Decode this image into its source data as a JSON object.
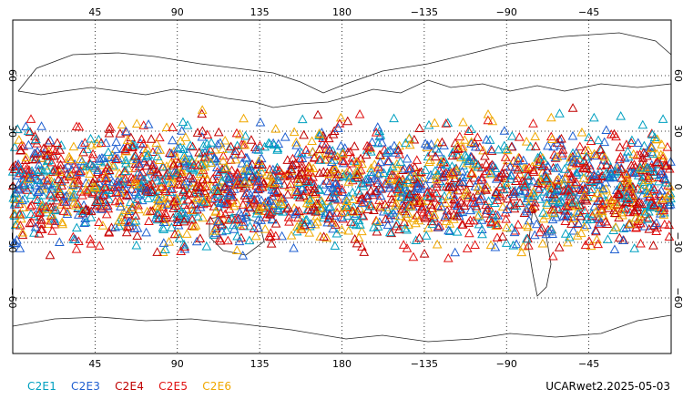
{
  "chart_data": {
    "type": "scatter",
    "projection": "cylindrical-equidistant",
    "center_longitude": 180,
    "marker": "open-triangle",
    "xlim": [
      0,
      360
    ],
    "ylim": [
      -90,
      90
    ],
    "grid": true,
    "lon_ticks": [
      {
        "value": 45,
        "label": "45"
      },
      {
        "value": 90,
        "label": "90"
      },
      {
        "value": 135,
        "label": "135"
      },
      {
        "value": 180,
        "label": "180"
      },
      {
        "value": 225,
        "label": "−135"
      },
      {
        "value": 270,
        "label": "−90"
      },
      {
        "value": 315,
        "label": "−45"
      }
    ],
    "lat_ticks": [
      {
        "value": 60,
        "label": "60"
      },
      {
        "value": 30,
        "label": "30"
      },
      {
        "value": 0,
        "label": "0"
      },
      {
        "value": -30,
        "label": "−30"
      },
      {
        "value": -60,
        "label": "−60"
      }
    ],
    "observation_lat_range": [
      -45,
      45
    ],
    "series": [
      {
        "name": "C2E1",
        "color": "#00a0c0"
      },
      {
        "name": "C2E3",
        "color": "#1f5fd0"
      },
      {
        "name": "C2E4",
        "color": "#c00000"
      },
      {
        "name": "C2E5",
        "color": "#e01010"
      },
      {
        "name": "C2E6",
        "color": "#f0a800"
      }
    ]
  },
  "footer": {
    "product_label": "UCARwet2.2025-05-03"
  }
}
